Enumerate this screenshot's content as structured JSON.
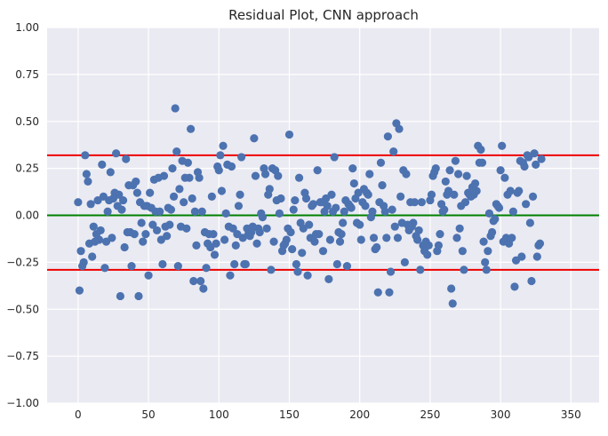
{
  "chart_data": {
    "type": "scatter",
    "title": "Residual Plot, CNN approach",
    "xlabel": "",
    "ylabel": "",
    "xlim": [
      -22,
      370
    ],
    "ylim": [
      -1.0,
      1.0
    ],
    "xticks": [
      0,
      50,
      100,
      150,
      200,
      250,
      300,
      350
    ],
    "xtick_labels": [
      "0",
      "50",
      "100",
      "150",
      "200",
      "250",
      "300",
      "350"
    ],
    "yticks": [
      1.0,
      0.75,
      0.5,
      0.25,
      0.0,
      -0.25,
      -0.5,
      -0.75,
      -1.0
    ],
    "ytick_labels": [
      "1.00",
      "0.75",
      "0.50",
      "0.25",
      "0.00",
      "−0.25",
      "−0.50",
      "−0.75",
      "−1.00"
    ],
    "grid": true,
    "hlines": [
      {
        "y": 0.32,
        "color": "#ee0000"
      },
      {
        "y": 0.0,
        "color": "#008000"
      },
      {
        "y": -0.29,
        "color": "#ee0000"
      }
    ],
    "colors": {
      "background": "#eaeaf2",
      "grid": "#ffffff",
      "marker": "#4c72b0"
    },
    "points": [
      [
        0,
        0.07
      ],
      [
        1,
        -0.4
      ],
      [
        2,
        -0.19
      ],
      [
        3,
        -0.27
      ],
      [
        4,
        -0.25
      ],
      [
        5,
        0.32
      ],
      [
        6,
        0.22
      ],
      [
        7,
        0.18
      ],
      [
        8,
        -0.15
      ],
      [
        9,
        0.06
      ],
      [
        10,
        -0.22
      ],
      [
        11,
        -0.06
      ],
      [
        12,
        -0.14
      ],
      [
        13,
        -0.1
      ],
      [
        14,
        0.08
      ],
      [
        15,
        -0.13
      ],
      [
        16,
        -0.08
      ],
      [
        17,
        0.27
      ],
      [
        18,
        0.1
      ],
      [
        19,
        -0.28
      ],
      [
        20,
        -0.14
      ],
      [
        21,
        0.02
      ],
      [
        22,
        0.08
      ],
      [
        23,
        0.23
      ],
      [
        24,
        -0.12
      ],
      [
        25,
        0.09
      ],
      [
        26,
        0.12
      ],
      [
        27,
        0.33
      ],
      [
        28,
        0.05
      ],
      [
        29,
        0.11
      ],
      [
        30,
        -0.43
      ],
      [
        31,
        0.03
      ],
      [
        32,
        0.08
      ],
      [
        33,
        -0.17
      ],
      [
        34,
        0.3
      ],
      [
        35,
        -0.09
      ],
      [
        36,
        0.16
      ],
      [
        37,
        -0.09
      ],
      [
        38,
        -0.27
      ],
      [
        39,
        0.16
      ],
      [
        40,
        -0.1
      ],
      [
        41,
        0.18
      ],
      [
        42,
        0.12
      ],
      [
        43,
        -0.43
      ],
      [
        44,
        0.07
      ],
      [
        45,
        -0.04
      ],
      [
        46,
        -0.14
      ],
      [
        47,
        0.05
      ],
      [
        48,
        -0.1
      ],
      [
        49,
        0.05
      ],
      [
        50,
        -0.32
      ],
      [
        51,
        0.12
      ],
      [
        52,
        0.04
      ],
      [
        53,
        -0.05
      ],
      [
        54,
        0.19
      ],
      [
        55,
        0.02
      ],
      [
        56,
        -0.08
      ],
      [
        57,
        0.2
      ],
      [
        58,
        0.02
      ],
      [
        59,
        -0.13
      ],
      [
        60,
        -0.26
      ],
      [
        61,
        0.21
      ],
      [
        62,
        -0.06
      ],
      [
        63,
        -0.11
      ],
      [
        64,
        0.04
      ],
      [
        65,
        -0.05
      ],
      [
        66,
        0.03
      ],
      [
        67,
        0.25
      ],
      [
        68,
        0.1
      ],
      [
        69,
        0.57
      ],
      [
        70,
        0.34
      ],
      [
        71,
        -0.27
      ],
      [
        72,
        0.14
      ],
      [
        73,
        -0.06
      ],
      [
        74,
        0.29
      ],
      [
        75,
        0.07
      ],
      [
        76,
        0.2
      ],
      [
        77,
        -0.07
      ],
      [
        78,
        0.28
      ],
      [
        79,
        0.2
      ],
      [
        80,
        0.46
      ],
      [
        81,
        0.09
      ],
      [
        82,
        -0.35
      ],
      [
        83,
        0.02
      ],
      [
        84,
        -0.16
      ],
      [
        85,
        0.23
      ],
      [
        86,
        0.2
      ],
      [
        87,
        -0.35
      ],
      [
        88,
        0.02
      ],
      [
        89,
        -0.39
      ],
      [
        90,
        -0.09
      ],
      [
        91,
        -0.28
      ],
      [
        92,
        -0.15
      ],
      [
        93,
        -0.1
      ],
      [
        94,
        -0.17
      ],
      [
        95,
        0.1
      ],
      [
        96,
        -0.1
      ],
      [
        97,
        -0.21
      ],
      [
        98,
        -0.15
      ],
      [
        99,
        0.26
      ],
      [
        100,
        0.24
      ],
      [
        101,
        0.32
      ],
      [
        102,
        0.13
      ],
      [
        103,
        0.37
      ],
      [
        104,
        -0.13
      ],
      [
        105,
        0.01
      ],
      [
        106,
        0.27
      ],
      [
        107,
        -0.06
      ],
      [
        108,
        -0.32
      ],
      [
        109,
        0.26
      ],
      [
        110,
        -0.07
      ],
      [
        111,
        -0.26
      ],
      [
        112,
        -0.16
      ],
      [
        113,
        -0.1
      ],
      [
        114,
        0.05
      ],
      [
        115,
        0.11
      ],
      [
        116,
        0.31
      ],
      [
        117,
        -0.12
      ],
      [
        118,
        -0.26
      ],
      [
        119,
        -0.26
      ],
      [
        120,
        -0.07
      ],
      [
        121,
        -0.1
      ],
      [
        122,
        -0.11
      ],
      [
        123,
        -0.09
      ],
      [
        124,
        -0.06
      ],
      [
        125,
        0.41
      ],
      [
        126,
        0.21
      ],
      [
        127,
        -0.15
      ],
      [
        128,
        -0.07
      ],
      [
        129,
        -0.09
      ],
      [
        130,
        0.01
      ],
      [
        131,
        -0.01
      ],
      [
        132,
        0.25
      ],
      [
        133,
        0.22
      ],
      [
        134,
        -0.07
      ],
      [
        135,
        0.11
      ],
      [
        136,
        0.14
      ],
      [
        137,
        -0.29
      ],
      [
        138,
        0.25
      ],
      [
        139,
        -0.14
      ],
      [
        140,
        0.24
      ],
      [
        141,
        0.08
      ],
      [
        142,
        0.21
      ],
      [
        143,
        0.01
      ],
      [
        144,
        0.09
      ],
      [
        145,
        -0.19
      ],
      [
        146,
        -0.16
      ],
      [
        147,
        -0.15
      ],
      [
        148,
        -0.13
      ],
      [
        149,
        -0.07
      ],
      [
        150,
        0.43
      ],
      [
        151,
        -0.09
      ],
      [
        152,
        -0.18
      ],
      [
        153,
        0.03
      ],
      [
        154,
        0.08
      ],
      [
        155,
        -0.26
      ],
      [
        156,
        -0.3
      ],
      [
        157,
        0.2
      ],
      [
        158,
        -0.04
      ],
      [
        159,
        -0.2
      ],
      [
        160,
        -0.07
      ],
      [
        161,
        0.12
      ],
      [
        162,
        0.09
      ],
      [
        163,
        -0.32
      ],
      [
        164,
        -0.05
      ],
      [
        165,
        -0.12
      ],
      [
        166,
        0.05
      ],
      [
        167,
        0.06
      ],
      [
        168,
        -0.14
      ],
      [
        169,
        -0.1
      ],
      [
        170,
        0.24
      ],
      [
        171,
        -0.1
      ],
      [
        172,
        0.07
      ],
      [
        173,
        0.07
      ],
      [
        174,
        -0.19
      ],
      [
        175,
        0.02
      ],
      [
        176,
        0.09
      ],
      [
        177,
        0.05
      ],
      [
        178,
        -0.34
      ],
      [
        179,
        -0.13
      ],
      [
        180,
        0.11
      ],
      [
        181,
        0.02
      ],
      [
        182,
        0.31
      ],
      [
        183,
        0.04
      ],
      [
        184,
        -0.26
      ],
      [
        185,
        -0.09
      ],
      [
        186,
        -0.14
      ],
      [
        187,
        -0.1
      ],
      [
        188,
        -0.04
      ],
      [
        189,
        0.02
      ],
      [
        190,
        0.08
      ],
      [
        191,
        -0.27
      ],
      [
        192,
        0.06
      ],
      [
        193,
        0.05
      ],
      [
        194,
        0.04
      ],
      [
        195,
        0.25
      ],
      [
        196,
        0.17
      ],
      [
        197,
        0.09
      ],
      [
        198,
        -0.04
      ],
      [
        199,
        0.12
      ],
      [
        200,
        -0.05
      ],
      [
        201,
        -0.13
      ],
      [
        202,
        0.07
      ],
      [
        203,
        0.14
      ],
      [
        204,
        0.05
      ],
      [
        205,
        0.12
      ],
      [
        206,
        0.11
      ],
      [
        207,
        0.22
      ],
      [
        208,
        -0.01
      ],
      [
        209,
        0.02
      ],
      [
        210,
        -0.12
      ],
      [
        211,
        -0.18
      ],
      [
        212,
        -0.17
      ],
      [
        213,
        -0.41
      ],
      [
        214,
        0.07
      ],
      [
        215,
        0.28
      ],
      [
        216,
        0.16
      ],
      [
        217,
        0.05
      ],
      [
        218,
        0.02
      ],
      [
        219,
        -0.12
      ],
      [
        220,
        0.42
      ],
      [
        221,
        -0.41
      ],
      [
        222,
        -0.3
      ],
      [
        223,
        0.03
      ],
      [
        224,
        0.34
      ],
      [
        225,
        -0.06
      ],
      [
        226,
        0.49
      ],
      [
        227,
        -0.12
      ],
      [
        228,
        0.46
      ],
      [
        229,
        0.1
      ],
      [
        230,
        -0.04
      ],
      [
        231,
        0.24
      ],
      [
        232,
        -0.25
      ],
      [
        233,
        0.22
      ],
      [
        234,
        -0.05
      ],
      [
        235,
        -0.08
      ],
      [
        236,
        0.07
      ],
      [
        237,
        -0.06
      ],
      [
        238,
        -0.04
      ],
      [
        239,
        0.07
      ],
      [
        240,
        -0.11
      ],
      [
        241,
        -0.13
      ],
      [
        242,
        -0.08
      ],
      [
        243,
        -0.29
      ],
      [
        244,
        0.07
      ],
      [
        245,
        -0.16
      ],
      [
        246,
        -0.19
      ],
      [
        247,
        -0.14
      ],
      [
        248,
        -0.21
      ],
      [
        249,
        -0.16
      ],
      [
        250,
        0.08
      ],
      [
        251,
        0.11
      ],
      [
        252,
        0.21
      ],
      [
        253,
        0.23
      ],
      [
        254,
        0.25
      ],
      [
        255,
        -0.19
      ],
      [
        256,
        -0.16
      ],
      [
        257,
        -0.1
      ],
      [
        258,
        0.06
      ],
      [
        259,
        0.02
      ],
      [
        260,
        0.03
      ],
      [
        261,
        0.18
      ],
      [
        262,
        0.11
      ],
      [
        263,
        0.13
      ],
      [
        264,
        0.24
      ],
      [
        265,
        -0.39
      ],
      [
        266,
        -0.47
      ],
      [
        267,
        0.11
      ],
      [
        268,
        0.29
      ],
      [
        269,
        -0.12
      ],
      [
        270,
        0.22
      ],
      [
        271,
        -0.07
      ],
      [
        272,
        0.05
      ],
      [
        273,
        -0.19
      ],
      [
        274,
        -0.29
      ],
      [
        275,
        0.07
      ],
      [
        276,
        0.21
      ],
      [
        277,
        0.12
      ],
      [
        278,
        0.11
      ],
      [
        279,
        0.1
      ],
      [
        280,
        0.15
      ],
      [
        281,
        0.11
      ],
      [
        282,
        0.17
      ],
      [
        283,
        0.13
      ],
      [
        284,
        0.37
      ],
      [
        285,
        0.28
      ],
      [
        286,
        0.35
      ],
      [
        287,
        0.28
      ],
      [
        288,
        -0.14
      ],
      [
        289,
        -0.25
      ],
      [
        290,
        -0.29
      ],
      [
        291,
        -0.19
      ],
      [
        292,
        0.01
      ],
      [
        293,
        -0.11
      ],
      [
        294,
        -0.09
      ],
      [
        295,
        -0.03
      ],
      [
        296,
        -0.02
      ],
      [
        297,
        0.06
      ],
      [
        298,
        0.05
      ],
      [
        299,
        0.04
      ],
      [
        300,
        0.24
      ],
      [
        301,
        0.37
      ],
      [
        302,
        -0.14
      ],
      [
        303,
        0.2
      ],
      [
        304,
        -0.12
      ],
      [
        305,
        0.11
      ],
      [
        306,
        -0.15
      ],
      [
        307,
        0.13
      ],
      [
        308,
        -0.12
      ],
      [
        309,
        0.02
      ],
      [
        310,
        -0.38
      ],
      [
        311,
        -0.24
      ],
      [
        312,
        0.12
      ],
      [
        313,
        0.13
      ],
      [
        314,
        0.29
      ],
      [
        315,
        -0.22
      ],
      [
        316,
        0.28
      ],
      [
        317,
        0.26
      ],
      [
        318,
        0.06
      ],
      [
        319,
        0.32
      ],
      [
        320,
        0.31
      ],
      [
        321,
        -0.04
      ],
      [
        322,
        -0.35
      ],
      [
        323,
        0.1
      ],
      [
        324,
        0.33
      ],
      [
        325,
        0.27
      ],
      [
        326,
        -0.22
      ],
      [
        327,
        -0.16
      ],
      [
        328,
        -0.15
      ],
      [
        329,
        0.3
      ]
    ]
  }
}
